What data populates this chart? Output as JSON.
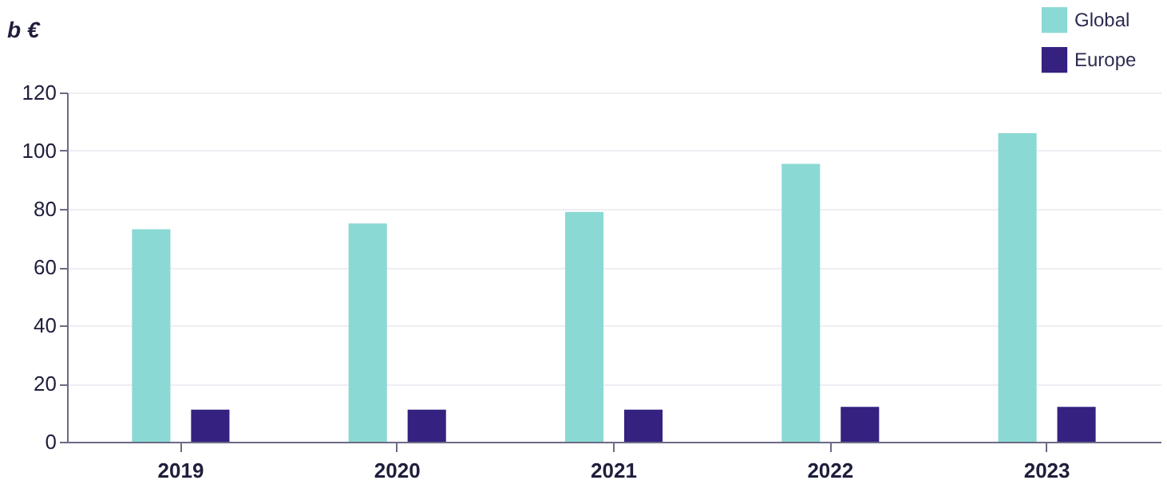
{
  "chart_data": {
    "type": "bar",
    "ylabel": "b €",
    "categories": [
      "2019",
      "2020",
      "2021",
      "2022",
      "2023"
    ],
    "series": [
      {
        "name": "Global",
        "color": "#8ad9d4",
        "values": [
          73,
          75,
          79,
          95.5,
          106
        ]
      },
      {
        "name": "Europe",
        "color": "#35217f",
        "values": [
          11,
          11,
          11,
          12,
          12
        ]
      }
    ],
    "ylim": [
      0,
      120
    ],
    "yticks": [
      0,
      20,
      40,
      60,
      80,
      100,
      120
    ],
    "grid": "y",
    "legend": "top right"
  }
}
